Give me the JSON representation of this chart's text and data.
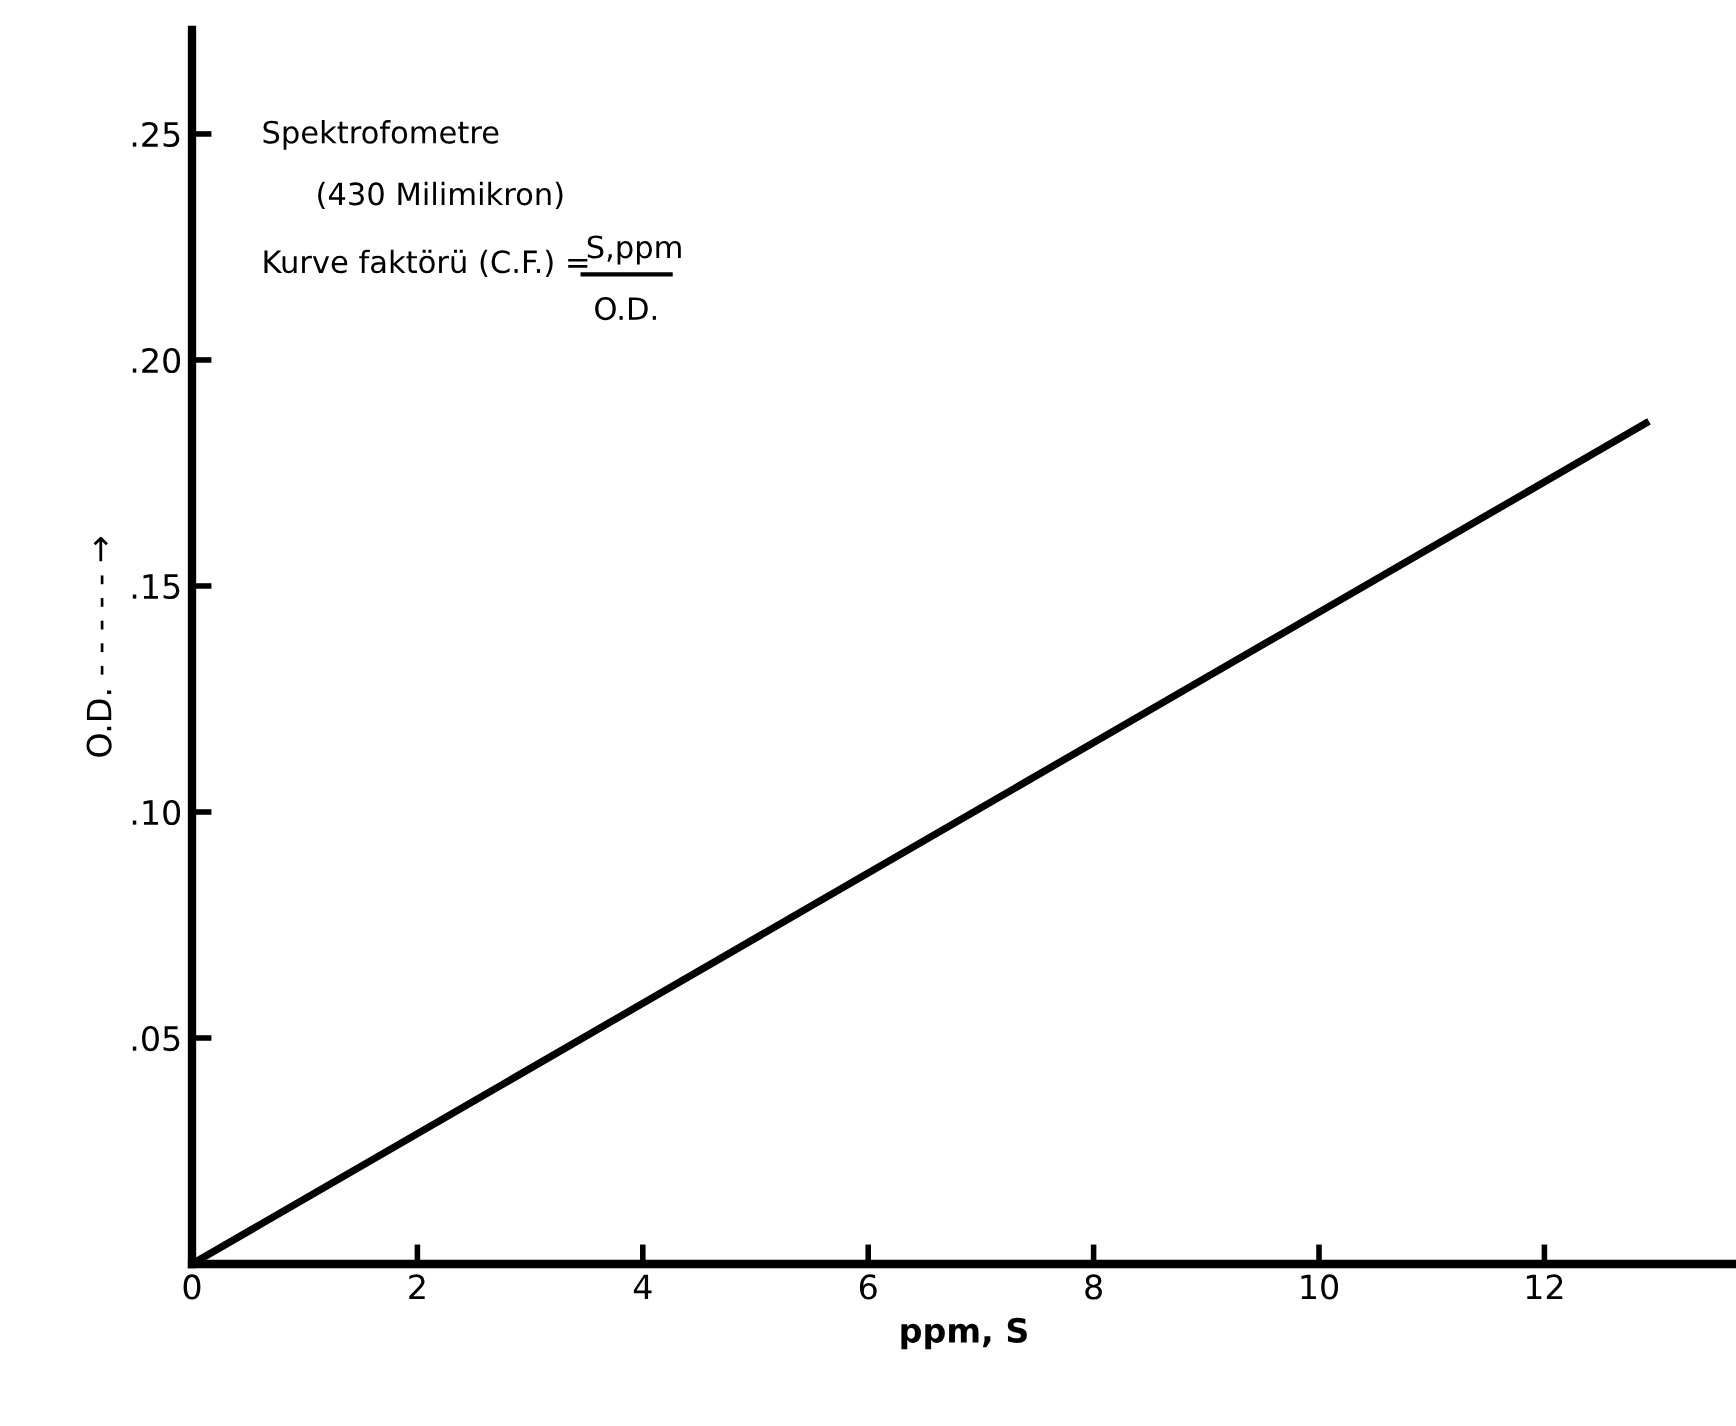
{
  "chart_data": {
    "type": "line",
    "xlabel": "ppm, S",
    "ylabel": "O.D. - - - - - →",
    "annotations": [
      "Spektrofometre",
      "(430 Milimikron)",
      "Kurve faktörü (C.F.) =",
      "S,ppm",
      "O.D."
    ],
    "x": [
      0,
      12.9
    ],
    "series": [
      {
        "color": "#000000",
        "values": [
          0,
          0.186
        ]
      }
    ],
    "xlim": [
      0,
      13.7
    ],
    "ylim": [
      0,
      0.273
    ],
    "xticks": [
      0,
      2,
      4,
      6,
      8,
      10,
      12
    ],
    "yticks": [
      {
        "value": 0.05,
        "label": ".05"
      },
      {
        "value": 0.1,
        "label": ".10"
      },
      {
        "value": 0.15,
        "label": ".15"
      },
      {
        "value": 0.2,
        "label": ".20"
      },
      {
        "value": 0.25,
        "label": ".25"
      }
    ],
    "grid": false,
    "legend": false,
    "marker": "none",
    "line_style": "solid"
  }
}
